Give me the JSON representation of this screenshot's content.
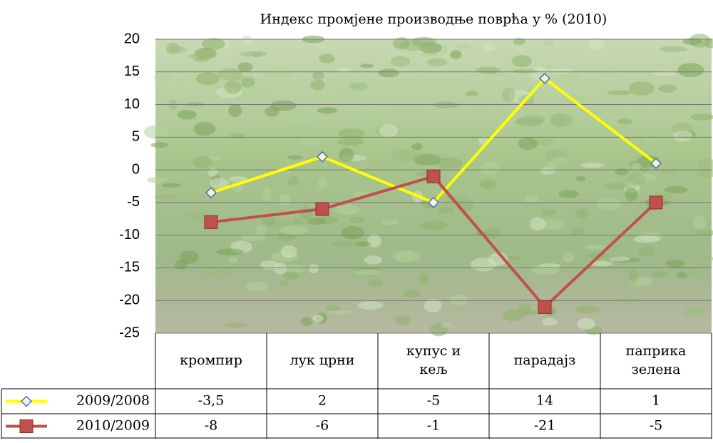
{
  "chart_data": {
    "type": "line",
    "title": "Индекс промјене производње поврћа  у % (2010)",
    "categories": [
      "кромпир",
      "лук црни",
      "купус и\nкељ",
      "парадајз",
      "паприка\nзелена"
    ],
    "series": [
      {
        "name": "2009/2008",
        "color": "#ffff00",
        "marker": "diamond",
        "values": [
          -3.5,
          2,
          -5,
          14,
          1
        ],
        "value_labels": [
          "-3,5",
          "2",
          "-5",
          "14",
          "1"
        ]
      },
      {
        "name": "2010/2009",
        "color": "#c0504d",
        "marker": "square",
        "values": [
          -8,
          -6,
          -1,
          -21,
          -5
        ]
      }
    ],
    "ylim": [
      -25,
      20
    ],
    "yticks": [
      -25,
      -20,
      -15,
      -10,
      -5,
      0,
      5,
      10,
      15,
      20
    ],
    "grid": true
  }
}
